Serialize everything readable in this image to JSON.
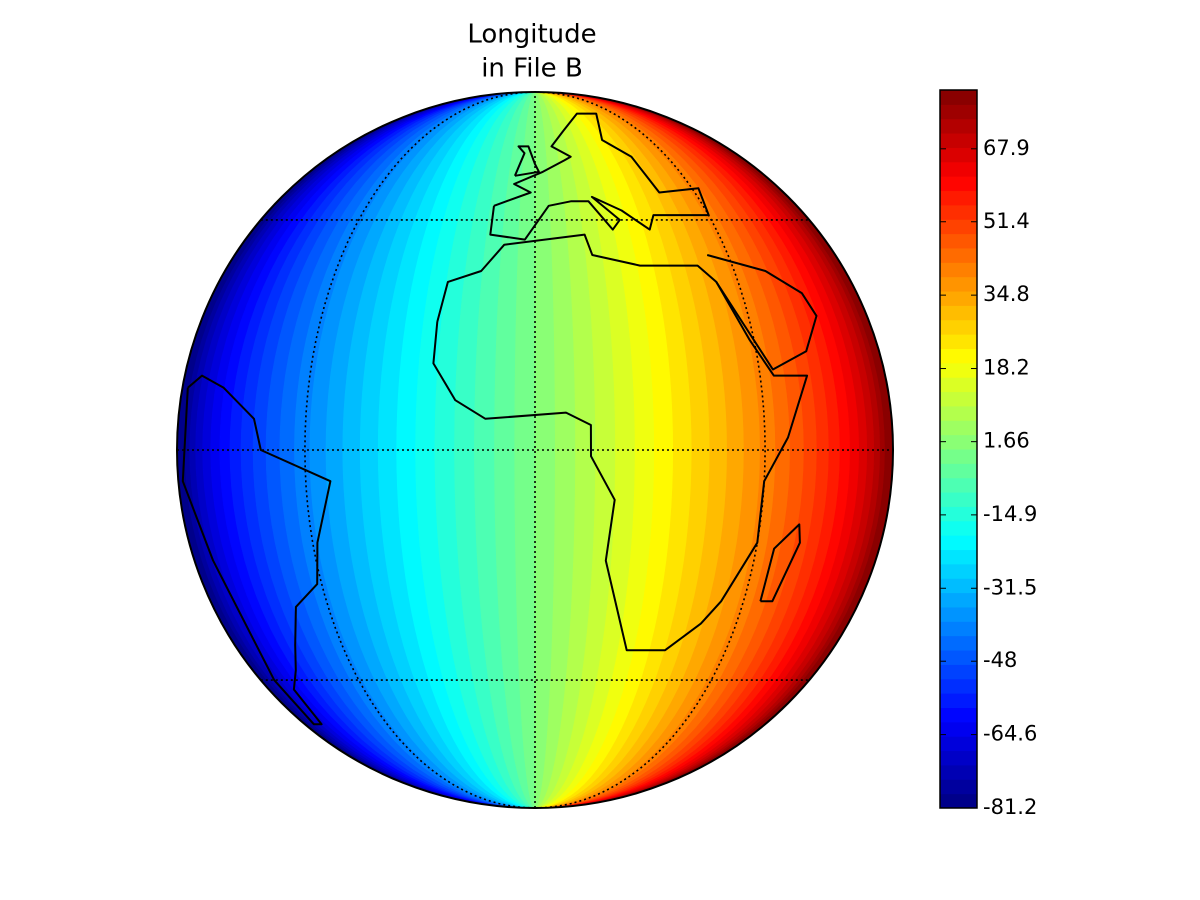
{
  "chart_data": {
    "type": "map",
    "projection": "orthographic",
    "colormap": "jet",
    "title": [
      "Longitude",
      "in File B"
    ],
    "clim": [
      -81.2,
      81.2
    ],
    "cticks": [
      -81.2,
      -64.6,
      -48,
      -31.5,
      -14.9,
      1.66,
      18.2,
      34.8,
      51.4,
      67.9
    ],
    "grid": true
  }
}
